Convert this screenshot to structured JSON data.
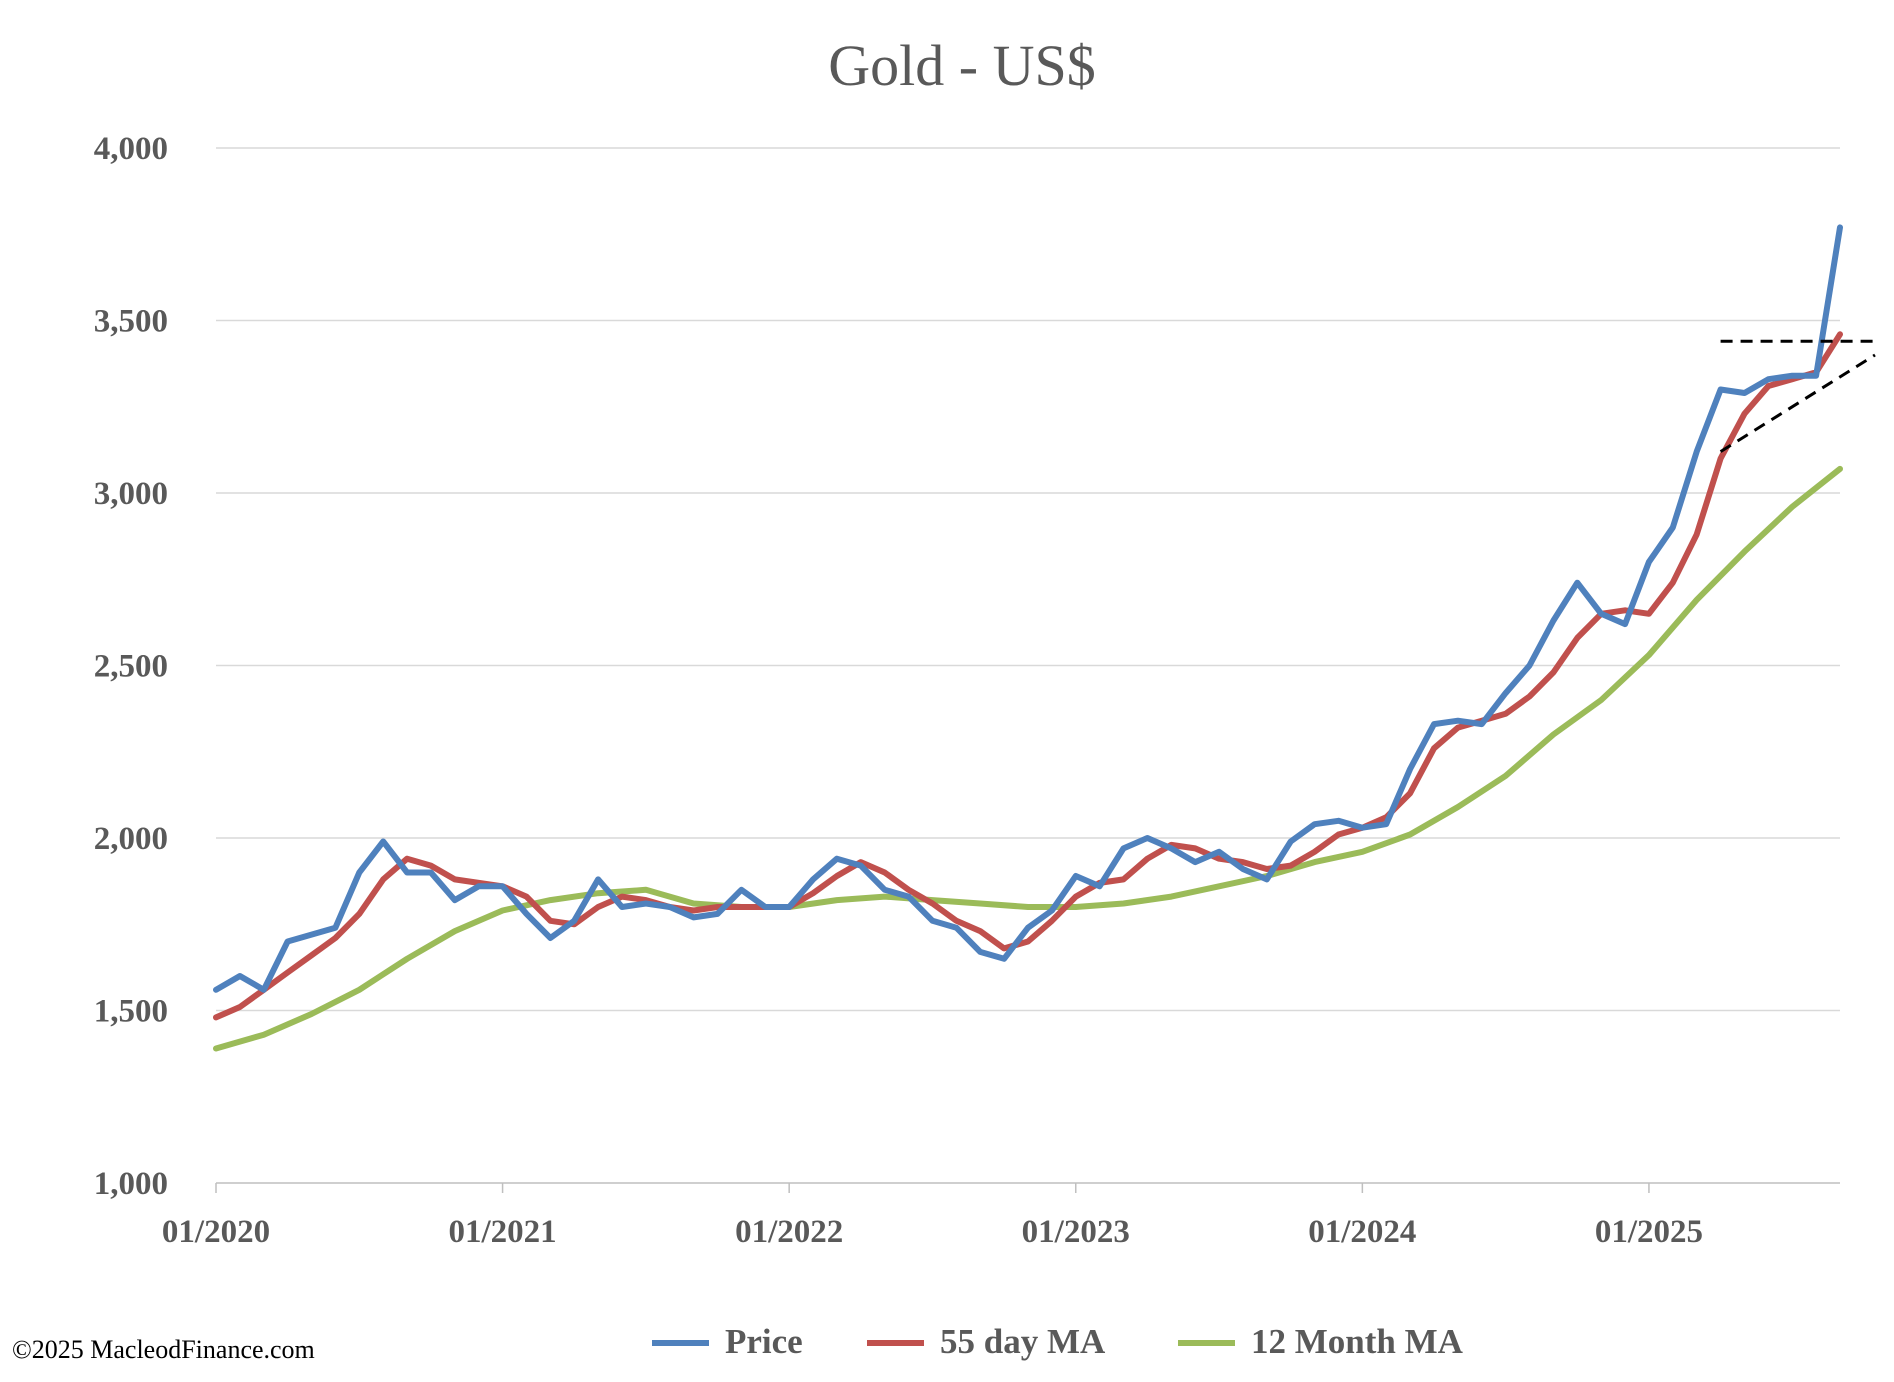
{
  "chart_data": {
    "type": "line",
    "title": "Gold - US$",
    "xlabel": "",
    "ylabel": "",
    "ylim": [
      1000,
      4000
    ],
    "yticks": [
      1000,
      1500,
      2000,
      2500,
      3000,
      3500,
      4000
    ],
    "ytick_labels": [
      "1,000",
      "1,500",
      "2,000",
      "2,500",
      "3,000",
      "3,500",
      "4,000"
    ],
    "xlim": [
      "2020-01",
      "2025-09"
    ],
    "xtick_labels": [
      "01/2020",
      "01/2021",
      "01/2022",
      "01/2023",
      "01/2024",
      "01/2025"
    ],
    "xticks": [
      "2020-01",
      "2021-01",
      "2022-01",
      "2023-01",
      "2024-01",
      "2025-01"
    ],
    "grid": "horizontal",
    "legend_position": "bottom",
    "series": [
      {
        "name": "Price",
        "color": "#4f81bd",
        "x": [
          "2020-01",
          "2020-02",
          "2020-03",
          "2020-04",
          "2020-05",
          "2020-06",
          "2020-07",
          "2020-08",
          "2020-09",
          "2020-10",
          "2020-11",
          "2020-12",
          "2021-01",
          "2021-02",
          "2021-03",
          "2021-04",
          "2021-05",
          "2021-06",
          "2021-07",
          "2021-08",
          "2021-09",
          "2021-10",
          "2021-11",
          "2021-12",
          "2022-01",
          "2022-02",
          "2022-03",
          "2022-04",
          "2022-05",
          "2022-06",
          "2022-07",
          "2022-08",
          "2022-09",
          "2022-10",
          "2022-11",
          "2022-12",
          "2023-01",
          "2023-02",
          "2023-03",
          "2023-04",
          "2023-05",
          "2023-06",
          "2023-07",
          "2023-08",
          "2023-09",
          "2023-10",
          "2023-11",
          "2023-12",
          "2024-01",
          "2024-02",
          "2024-03",
          "2024-04",
          "2024-05",
          "2024-06",
          "2024-07",
          "2024-08",
          "2024-09",
          "2024-10",
          "2024-11",
          "2024-12",
          "2025-01",
          "2025-02",
          "2025-03",
          "2025-04",
          "2025-05",
          "2025-06",
          "2025-07",
          "2025-08",
          "2025-09"
        ],
        "values": [
          1560,
          1600,
          1560,
          1700,
          1720,
          1740,
          1900,
          1990,
          1900,
          1900,
          1820,
          1860,
          1860,
          1780,
          1710,
          1760,
          1880,
          1800,
          1810,
          1800,
          1770,
          1780,
          1850,
          1800,
          1800,
          1880,
          1940,
          1920,
          1850,
          1830,
          1760,
          1740,
          1670,
          1650,
          1740,
          1790,
          1890,
          1860,
          1970,
          2000,
          1970,
          1930,
          1960,
          1910,
          1880,
          1990,
          2040,
          2050,
          2030,
          2040,
          2200,
          2330,
          2340,
          2330,
          2420,
          2500,
          2630,
          2740,
          2650,
          2620,
          2800,
          2900,
          3120,
          3300,
          3290,
          3330,
          3340,
          3340,
          3770
        ]
      },
      {
        "name": "55 day MA",
        "color": "#c0504d",
        "x": [
          "2020-01",
          "2020-02",
          "2020-03",
          "2020-04",
          "2020-05",
          "2020-06",
          "2020-07",
          "2020-08",
          "2020-09",
          "2020-10",
          "2020-11",
          "2020-12",
          "2021-01",
          "2021-02",
          "2021-03",
          "2021-04",
          "2021-05",
          "2021-06",
          "2021-07",
          "2021-08",
          "2021-09",
          "2021-10",
          "2021-11",
          "2021-12",
          "2022-01",
          "2022-02",
          "2022-03",
          "2022-04",
          "2022-05",
          "2022-06",
          "2022-07",
          "2022-08",
          "2022-09",
          "2022-10",
          "2022-11",
          "2022-12",
          "2023-01",
          "2023-02",
          "2023-03",
          "2023-04",
          "2023-05",
          "2023-06",
          "2023-07",
          "2023-08",
          "2023-09",
          "2023-10",
          "2023-11",
          "2023-12",
          "2024-01",
          "2024-02",
          "2024-03",
          "2024-04",
          "2024-05",
          "2024-06",
          "2024-07",
          "2024-08",
          "2024-09",
          "2024-10",
          "2024-11",
          "2024-12",
          "2025-01",
          "2025-02",
          "2025-03",
          "2025-04",
          "2025-05",
          "2025-06",
          "2025-07",
          "2025-08",
          "2025-09"
        ],
        "values": [
          1480,
          1510,
          1560,
          1610,
          1660,
          1710,
          1780,
          1880,
          1940,
          1920,
          1880,
          1870,
          1860,
          1830,
          1760,
          1750,
          1800,
          1830,
          1820,
          1800,
          1790,
          1800,
          1800,
          1800,
          1800,
          1840,
          1890,
          1930,
          1900,
          1850,
          1810,
          1760,
          1730,
          1680,
          1700,
          1760,
          1830,
          1870,
          1880,
          1940,
          1980,
          1970,
          1940,
          1930,
          1910,
          1920,
          1960,
          2010,
          2030,
          2060,
          2130,
          2260,
          2320,
          2340,
          2360,
          2410,
          2480,
          2580,
          2650,
          2660,
          2650,
          2740,
          2880,
          3100,
          3230,
          3310,
          3330,
          3350,
          3460
        ]
      },
      {
        "name": "12 Month MA",
        "color": "#9bbb59",
        "x": [
          "2020-01",
          "2020-03",
          "2020-05",
          "2020-07",
          "2020-09",
          "2020-11",
          "2021-01",
          "2021-03",
          "2021-05",
          "2021-07",
          "2021-09",
          "2021-11",
          "2022-01",
          "2022-03",
          "2022-05",
          "2022-07",
          "2022-09",
          "2022-11",
          "2023-01",
          "2023-03",
          "2023-05",
          "2023-07",
          "2023-09",
          "2023-11",
          "2024-01",
          "2024-03",
          "2024-05",
          "2024-07",
          "2024-09",
          "2024-11",
          "2025-01",
          "2025-03",
          "2025-05",
          "2025-07",
          "2025-09"
        ],
        "values": [
          1390,
          1430,
          1490,
          1560,
          1650,
          1730,
          1790,
          1820,
          1840,
          1850,
          1810,
          1800,
          1800,
          1820,
          1830,
          1820,
          1810,
          1800,
          1800,
          1810,
          1830,
          1860,
          1890,
          1930,
          1960,
          2010,
          2090,
          2180,
          2300,
          2400,
          2530,
          2690,
          2830,
          2960,
          3070
        ]
      }
    ],
    "annotations": [
      {
        "type": "dashed-line",
        "color": "#000000",
        "x": [
          "2025-04",
          "2025-09"
        ],
        "y": [
          3440,
          3440
        ]
      },
      {
        "type": "dashed-line",
        "color": "#000000",
        "x": [
          "2025-04",
          "2025-09"
        ],
        "y": [
          3120,
          3400
        ]
      }
    ]
  },
  "legend": {
    "price": "Price",
    "ma55": "55 day MA",
    "ma12": "12 Month MA"
  },
  "copyright": "©2025 MacleodFinance.com"
}
